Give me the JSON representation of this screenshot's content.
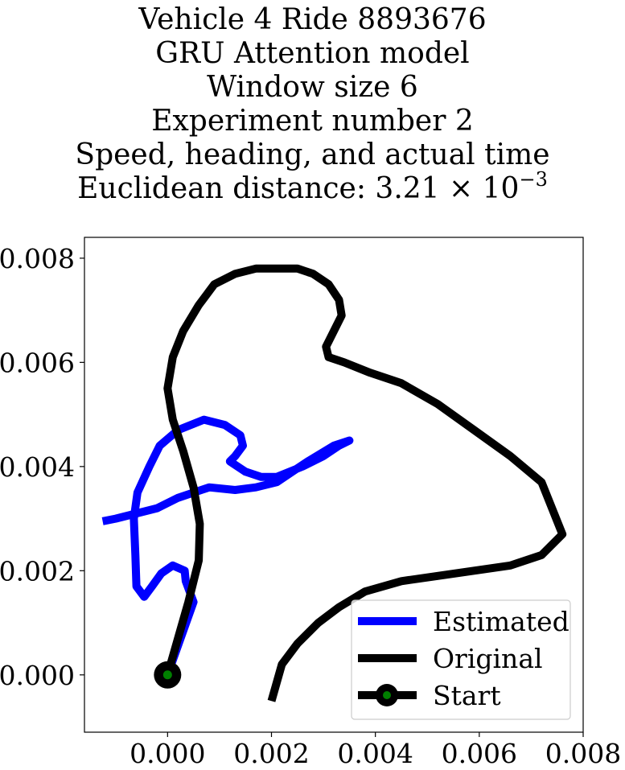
{
  "chart_data": {
    "type": "line",
    "title_lines": [
      "Vehicle 4 Ride 8893676",
      "GRU Attention model",
      "Window size 6",
      "Experiment number 2",
      "Speed, heading, and actual time"
    ],
    "distance_label": "Euclidean distance: 3.21",
    "distance_multiplier": "× 10",
    "distance_exponent": "−3",
    "xlim": [
      -0.0016,
      0.008
    ],
    "ylim": [
      -0.0011,
      0.0084
    ],
    "xticks": [
      0.0,
      0.002,
      0.004,
      0.006,
      0.008
    ],
    "yticks": [
      0.0,
      0.002,
      0.004,
      0.006,
      0.008
    ],
    "xtick_labels": [
      "0.000",
      "0.002",
      "0.004",
      "0.006",
      "0.008"
    ],
    "ytick_labels": [
      "0.000",
      "0.002",
      "0.004",
      "0.006",
      "0.008"
    ],
    "grid": false,
    "legend_position": "lower-right",
    "series": [
      {
        "name": "Estimated",
        "color": "#0000ff",
        "x": [
          0.0,
          0.0005,
          0.00035,
          0.00033,
          0.0001,
          -0.00012,
          -0.0003,
          -0.00045,
          -0.0006,
          -0.00062,
          -0.00065,
          -0.00058,
          -0.00035,
          -0.00015,
          0.0002,
          0.0007,
          0.0011,
          0.0014,
          0.00145,
          0.0013,
          0.0012,
          0.0015,
          0.0018,
          0.0021,
          0.0026,
          0.003,
          0.0033,
          0.0035,
          0.0032,
          0.0027,
          0.0024,
          0.0021,
          0.0017,
          0.0013,
          0.0008,
          0.0002,
          -0.0002,
          -0.0006,
          -0.001,
          -0.00125
        ],
        "y": [
          0.0,
          0.0014,
          0.0018,
          0.002,
          0.0021,
          0.00195,
          0.0017,
          0.0015,
          0.0017,
          0.0023,
          0.003,
          0.0035,
          0.004,
          0.0044,
          0.0047,
          0.0049,
          0.0048,
          0.0046,
          0.0044,
          0.0042,
          0.0041,
          0.0039,
          0.0038,
          0.0038,
          0.004,
          0.0042,
          0.0044,
          0.0045,
          0.0044,
          0.0041,
          0.0039,
          0.0037,
          0.0036,
          0.00355,
          0.0036,
          0.0034,
          0.0032,
          0.0031,
          0.003,
          0.00295
        ]
      },
      {
        "name": "Original",
        "color": "#000000",
        "x": [
          0.0,
          0.0004,
          0.0006,
          0.00062,
          0.0005,
          0.0003,
          0.0001,
          0.0,
          0.0001,
          0.0003,
          0.0006,
          0.0009,
          0.0013,
          0.0017,
          0.0021,
          0.0025,
          0.0028,
          0.0031,
          0.0033,
          0.00335,
          0.0032,
          0.00305,
          0.0031,
          0.0034,
          0.0039,
          0.0045,
          0.0052,
          0.0059,
          0.0066,
          0.0072,
          0.0076,
          0.0072,
          0.0066,
          0.0059,
          0.0052,
          0.0045,
          0.0038,
          0.0033,
          0.0029,
          0.0025,
          0.0022,
          0.002
        ],
        "y": [
          0.0,
          0.0014,
          0.0022,
          0.0029,
          0.0036,
          0.0043,
          0.0049,
          0.0055,
          0.0061,
          0.0066,
          0.0071,
          0.0075,
          0.0077,
          0.0078,
          0.0078,
          0.0078,
          0.0077,
          0.0075,
          0.0072,
          0.0069,
          0.0066,
          0.0063,
          0.0061,
          0.006,
          0.0058,
          0.0056,
          0.0052,
          0.0047,
          0.0042,
          0.0037,
          0.0027,
          0.0023,
          0.0021,
          0.002,
          0.0019,
          0.0018,
          0.0016,
          0.0013,
          0.001,
          0.0006,
          0.0002,
          -0.0005
        ]
      }
    ],
    "start_point": {
      "name": "Start",
      "x": 0.0,
      "y": 0.0,
      "marker_color": "#008000",
      "outline_color": "#000000"
    }
  }
}
